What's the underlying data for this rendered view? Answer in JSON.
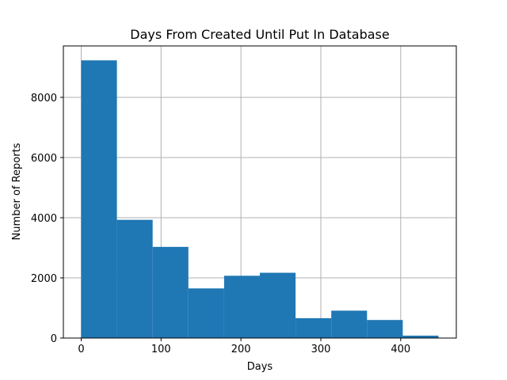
{
  "chart_data": {
    "type": "bar",
    "title": "Days From Created Until Put In Database",
    "xlabel": "Days",
    "ylabel": "Number of Reports",
    "xlim": [
      -22.3,
      469.6
    ],
    "ylim": [
      0,
      9710
    ],
    "bin_start": 0,
    "bin_width": 44.73,
    "values": [
      9230,
      3930,
      3030,
      1650,
      2070,
      2170,
      660,
      910,
      600,
      80
    ],
    "xticks": [
      0,
      100,
      200,
      300,
      400
    ],
    "yticks": [
      0,
      2000,
      4000,
      6000,
      8000
    ],
    "grid": true,
    "colors": {
      "bar": "#1f77b4",
      "grid": "#b0b0b0",
      "axis": "#000000"
    }
  }
}
